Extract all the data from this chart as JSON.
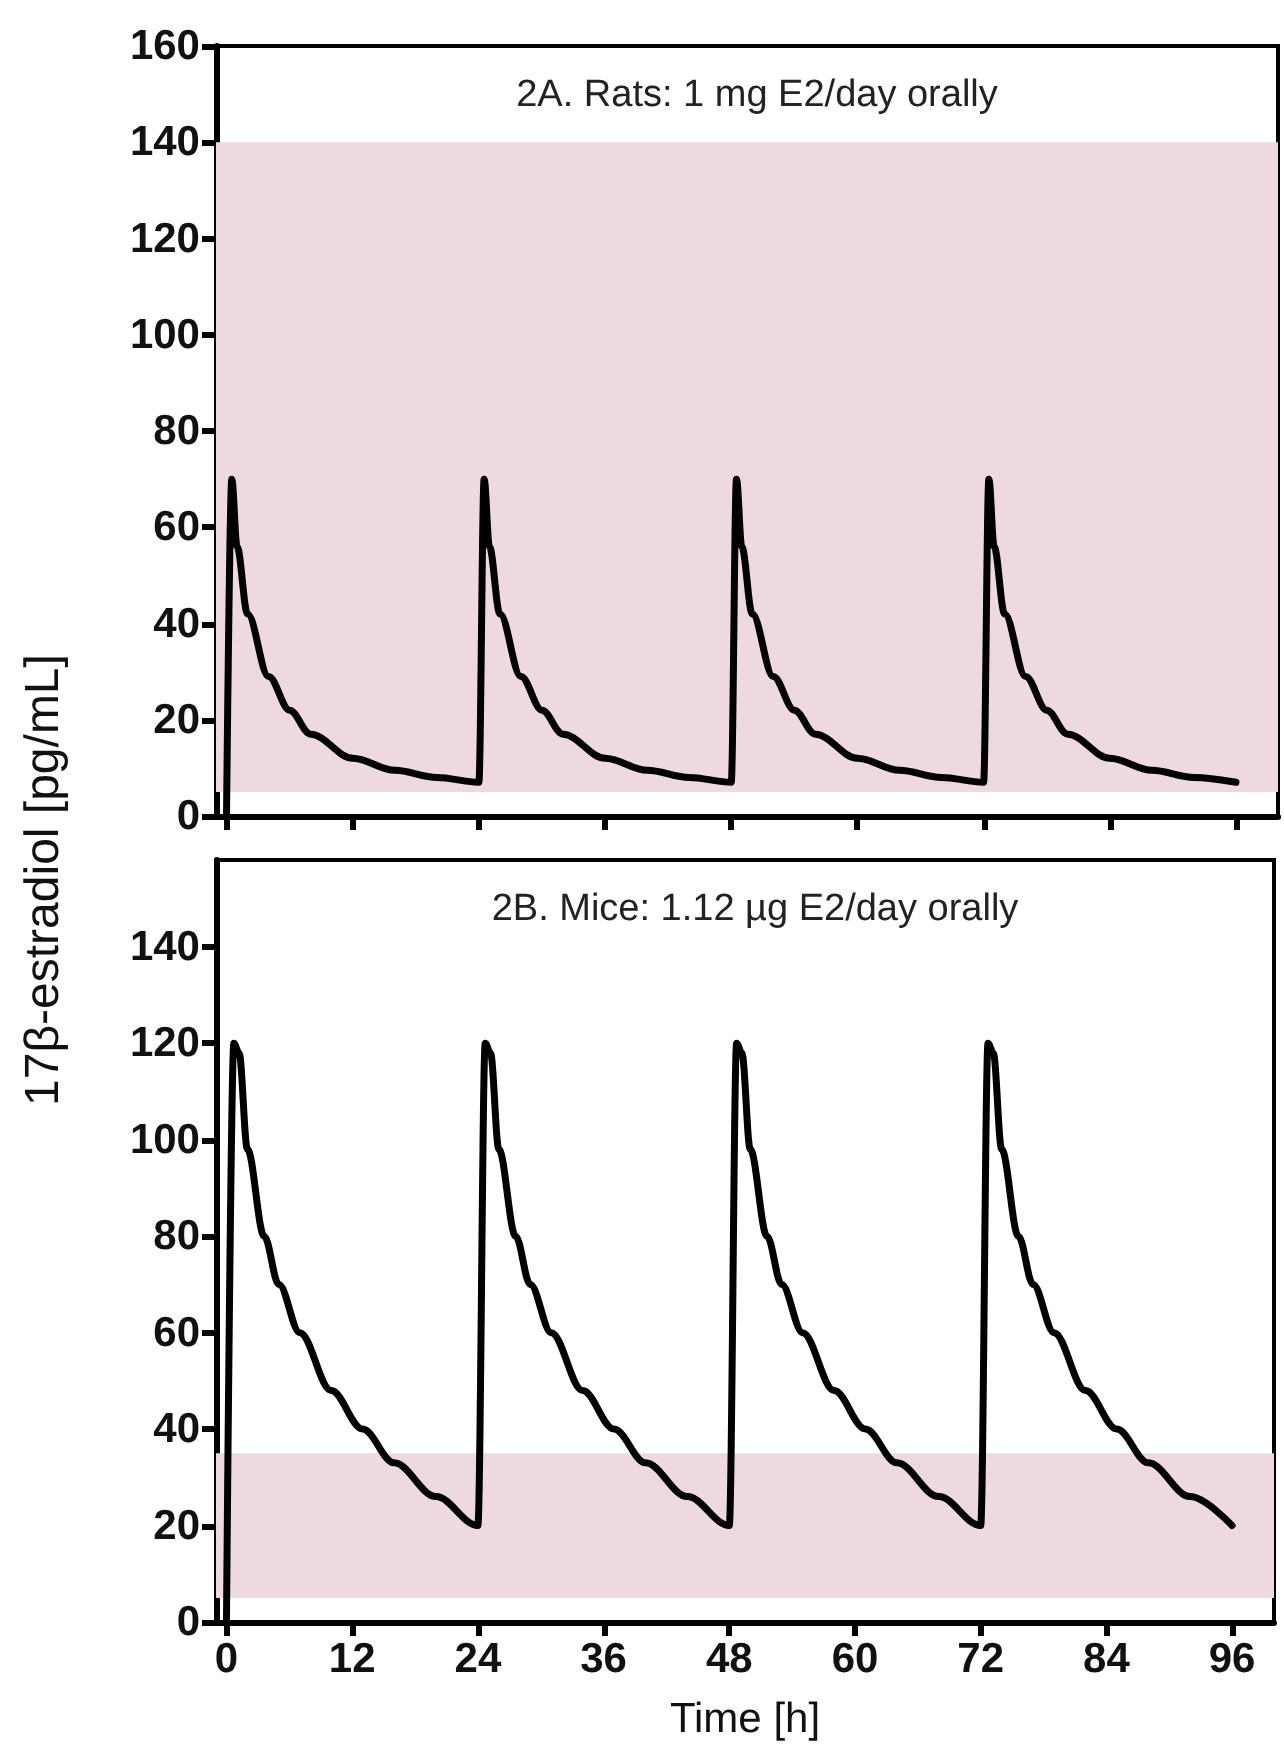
{
  "chart_data": [
    {
      "type": "line",
      "title": "2A. Rats: 1 mg E2/day orally",
      "ylabel": "17β-estradiol [pg/mL]",
      "xlim": [
        -1,
        100
      ],
      "xticks": [
        {
          "value": 0,
          "label": null
        },
        {
          "value": 12,
          "label": null
        },
        {
          "value": 24,
          "label": null
        },
        {
          "value": 36,
          "label": null
        },
        {
          "value": 48,
          "label": null
        },
        {
          "value": 60,
          "label": null
        },
        {
          "value": 72,
          "label": null
        },
        {
          "value": 84,
          "label": null
        },
        {
          "value": 96,
          "label": null
        }
      ],
      "ylim": [
        0,
        160
      ],
      "yticks": [
        0,
        20,
        40,
        60,
        80,
        100,
        120,
        140,
        160
      ],
      "tick_labels": "y",
      "marker": "none",
      "line_style": "solid",
      "bands": [
        {
          "axis": "y",
          "from": 5,
          "to": 140,
          "color": "#eed9e0"
        }
      ],
      "series": [
        {
          "color": "#000000",
          "x": [
            0,
            0.5,
            1,
            2,
            4,
            6,
            8,
            12,
            16,
            20,
            24,
            24.5,
            25,
            26,
            28,
            30,
            32,
            36,
            40,
            44,
            48,
            48.5,
            49,
            50,
            52,
            54,
            56,
            60,
            64,
            68,
            72,
            72.5,
            73,
            74,
            76,
            78,
            80,
            84,
            88,
            92,
            96
          ],
          "values": [
            0,
            70,
            56,
            42,
            29,
            22,
            17,
            12,
            9.5,
            8,
            7,
            70,
            56,
            42,
            29,
            22,
            17,
            12,
            9.5,
            8,
            7,
            70,
            56,
            42,
            29,
            22,
            17,
            12,
            9.5,
            8,
            7,
            70,
            56,
            42,
            29,
            22,
            17,
            12,
            9.5,
            8,
            7
          ]
        }
      ]
    },
    {
      "type": "line",
      "title": "2B. Mice: 1.12 µg E2/day orally",
      "xlabel": "Time [h]",
      "xlim": [
        -1,
        100
      ],
      "xticks": [
        0,
        12,
        24,
        36,
        48,
        60,
        72,
        84,
        96
      ],
      "ylim": [
        0,
        158
      ],
      "yticks": [
        0,
        20,
        40,
        60,
        80,
        100,
        120,
        140
      ],
      "marker": "none",
      "line_style": "solid",
      "bands": [
        {
          "axis": "y",
          "from": 5,
          "to": 35,
          "color": "#eed9e0"
        }
      ],
      "series": [
        {
          "color": "#000000",
          "x": [
            0,
            0.7,
            1.2,
            2,
            3.6,
            5,
            7,
            10,
            13,
            16,
            20,
            24,
            24.7,
            25.2,
            26,
            27.6,
            29,
            31,
            34,
            37,
            40,
            44,
            48,
            48.7,
            49.2,
            50,
            51.6,
            53,
            55,
            58,
            61,
            64,
            68,
            72,
            72.7,
            73.2,
            74,
            75.6,
            77,
            79,
            82,
            85,
            88,
            92,
            96
          ],
          "values": [
            0,
            120,
            118,
            98,
            80,
            70,
            60,
            48,
            40,
            33,
            26,
            20,
            120,
            118,
            98,
            80,
            70,
            60,
            48,
            40,
            33,
            26,
            20,
            120,
            118,
            98,
            80,
            70,
            60,
            48,
            40,
            33,
            26,
            20,
            120,
            118,
            98,
            80,
            70,
            60,
            48,
            40,
            33,
            26,
            20
          ]
        }
      ]
    }
  ]
}
